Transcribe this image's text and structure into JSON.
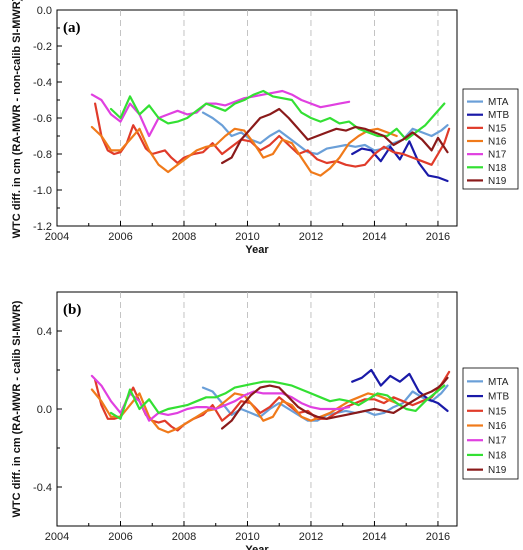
{
  "chart_data": [
    {
      "type": "line",
      "panel_label": "(a)",
      "xlabel": "Year",
      "ylabel": "WTC diff. in cm (RA-MWR - non-calib SI-MWR)",
      "xlim": [
        2004,
        2016.6
      ],
      "ylim": [
        -1.2,
        0.0
      ],
      "xticks": [
        2004,
        2006,
        2008,
        2010,
        2012,
        2014,
        2016
      ],
      "yticks": [
        -1.2,
        -1.0,
        -0.8,
        -0.6,
        -0.4,
        -0.2,
        0.0
      ],
      "ytick_labels": [
        "-1.2",
        "-1.0",
        "-0.8",
        "-0.6",
        "-0.4",
        "-0.2",
        "0.0"
      ],
      "grid": "vertical dashed",
      "legend_position": "right",
      "series": [
        {
          "name": "MTA",
          "color": "#6a9fd8",
          "x": [
            2008.6,
            2008.9,
            2009.2,
            2009.5,
            2009.8,
            2010.1,
            2010.4,
            2010.7,
            2011.0,
            2011.3,
            2011.6,
            2011.9,
            2012.2,
            2012.5,
            2012.8,
            2013.1,
            2013.4,
            2013.7,
            2014.0,
            2014.3,
            2014.6,
            2014.9,
            2015.2,
            2015.5,
            2015.8,
            2016.1,
            2016.3
          ],
          "y": [
            -0.57,
            -0.6,
            -0.64,
            -0.7,
            -0.68,
            -0.72,
            -0.74,
            -0.7,
            -0.67,
            -0.71,
            -0.75,
            -0.79,
            -0.8,
            -0.77,
            -0.76,
            -0.75,
            -0.76,
            -0.75,
            -0.78,
            -0.77,
            -0.74,
            -0.72,
            -0.66,
            -0.68,
            -0.7,
            -0.67,
            -0.64
          ]
        },
        {
          "name": "MTB",
          "color": "#1a1aa8",
          "x": [
            2013.3,
            2013.6,
            2013.9,
            2014.2,
            2014.5,
            2014.8,
            2015.1,
            2015.4,
            2015.7,
            2016.0,
            2016.3
          ],
          "y": [
            -0.8,
            -0.77,
            -0.78,
            -0.84,
            -0.76,
            -0.83,
            -0.73,
            -0.85,
            -0.92,
            -0.93,
            -0.95
          ]
        },
        {
          "name": "N15",
          "color": "#e03b2a",
          "x": [
            2005.2,
            2005.4,
            2005.6,
            2005.8,
            2006.0,
            2006.2,
            2006.4,
            2006.6,
            2006.8,
            2007.0,
            2007.2,
            2007.4,
            2007.6,
            2007.8,
            2008.0,
            2008.3,
            2008.6,
            2008.9,
            2009.2,
            2009.5,
            2009.8,
            2010.1,
            2010.4,
            2010.7,
            2011.0,
            2011.3,
            2011.6,
            2011.9,
            2012.2,
            2012.5,
            2012.8,
            2013.1,
            2013.4,
            2013.7,
            2014.0,
            2014.3,
            2014.6,
            2014.9,
            2015.2,
            2015.5,
            2015.8,
            2016.0,
            2016.2,
            2016.35
          ],
          "y": [
            -0.52,
            -0.7,
            -0.78,
            -0.8,
            -0.79,
            -0.74,
            -0.64,
            -0.7,
            -0.77,
            -0.8,
            -0.79,
            -0.78,
            -0.82,
            -0.85,
            -0.82,
            -0.8,
            -0.79,
            -0.74,
            -0.8,
            -0.76,
            -0.72,
            -0.73,
            -0.78,
            -0.75,
            -0.7,
            -0.75,
            -0.8,
            -0.78,
            -0.83,
            -0.85,
            -0.84,
            -0.86,
            -0.87,
            -0.86,
            -0.8,
            -0.76,
            -0.79,
            -0.8,
            -0.82,
            -0.84,
            -0.86,
            -0.8,
            -0.74,
            -0.66
          ]
        },
        {
          "name": "N16",
          "color": "#f07a1a",
          "x": [
            2005.1,
            2005.4,
            2005.7,
            2006.0,
            2006.3,
            2006.6,
            2006.9,
            2007.2,
            2007.5,
            2007.8,
            2008.1,
            2008.4,
            2008.7,
            2009.0,
            2009.3,
            2009.6,
            2009.9,
            2010.2,
            2010.5,
            2010.8,
            2011.1,
            2011.4,
            2011.7,
            2012.0,
            2012.3,
            2012.6,
            2012.9,
            2013.2,
            2013.5,
            2013.8,
            2014.1,
            2014.4,
            2014.7
          ],
          "y": [
            -0.65,
            -0.7,
            -0.78,
            -0.78,
            -0.72,
            -0.66,
            -0.78,
            -0.86,
            -0.9,
            -0.86,
            -0.82,
            -0.78,
            -0.76,
            -0.75,
            -0.7,
            -0.66,
            -0.67,
            -0.74,
            -0.82,
            -0.8,
            -0.72,
            -0.74,
            -0.82,
            -0.9,
            -0.92,
            -0.88,
            -0.82,
            -0.74,
            -0.7,
            -0.67,
            -0.66,
            -0.68,
            -0.7
          ]
        },
        {
          "name": "N17",
          "color": "#e040e0",
          "x": [
            2005.1,
            2005.4,
            2005.7,
            2006.0,
            2006.3,
            2006.6,
            2006.9,
            2007.2,
            2007.5,
            2007.8,
            2008.1,
            2008.4,
            2008.7,
            2009.0,
            2009.3,
            2009.6,
            2009.9,
            2010.2,
            2010.5,
            2010.8,
            2011.1,
            2011.4,
            2011.7,
            2012.0,
            2012.3,
            2012.6,
            2012.9,
            2013.2
          ],
          "y": [
            -0.47,
            -0.5,
            -0.58,
            -0.62,
            -0.52,
            -0.58,
            -0.7,
            -0.6,
            -0.58,
            -0.56,
            -0.58,
            -0.57,
            -0.52,
            -0.52,
            -0.53,
            -0.51,
            -0.49,
            -0.48,
            -0.47,
            -0.46,
            -0.45,
            -0.47,
            -0.5,
            -0.52,
            -0.54,
            -0.53,
            -0.52,
            -0.51
          ]
        },
        {
          "name": "N18",
          "color": "#33e033",
          "x": [
            2005.7,
            2006.0,
            2006.3,
            2006.6,
            2006.9,
            2007.2,
            2007.5,
            2007.8,
            2008.1,
            2008.4,
            2008.7,
            2009.0,
            2009.3,
            2009.6,
            2009.9,
            2010.2,
            2010.5,
            2010.8,
            2011.1,
            2011.4,
            2011.7,
            2012.0,
            2012.3,
            2012.6,
            2012.9,
            2013.2,
            2013.5,
            2013.8,
            2014.1,
            2014.4,
            2014.7,
            2015.0,
            2015.3,
            2015.6,
            2015.9,
            2016.2
          ],
          "y": [
            -0.55,
            -0.6,
            -0.48,
            -0.58,
            -0.53,
            -0.6,
            -0.63,
            -0.62,
            -0.6,
            -0.56,
            -0.52,
            -0.54,
            -0.56,
            -0.52,
            -0.5,
            -0.47,
            -0.45,
            -0.48,
            -0.49,
            -0.5,
            -0.57,
            -0.6,
            -0.62,
            -0.6,
            -0.63,
            -0.62,
            -0.66,
            -0.68,
            -0.7,
            -0.7,
            -0.66,
            -0.72,
            -0.68,
            -0.64,
            -0.58,
            -0.52
          ]
        },
        {
          "name": "N19",
          "color": "#8a1a1a",
          "x": [
            2009.2,
            2009.5,
            2009.8,
            2010.1,
            2010.4,
            2010.7,
            2011.0,
            2011.3,
            2011.6,
            2011.9,
            2012.2,
            2012.5,
            2012.8,
            2013.1,
            2013.4,
            2013.7,
            2014.0,
            2014.3,
            2014.6,
            2014.9,
            2015.2,
            2015.5,
            2015.8,
            2016.0,
            2016.15,
            2016.3
          ],
          "y": [
            -0.85,
            -0.82,
            -0.72,
            -0.66,
            -0.6,
            -0.58,
            -0.55,
            -0.6,
            -0.66,
            -0.72,
            -0.7,
            -0.68,
            -0.66,
            -0.67,
            -0.65,
            -0.66,
            -0.68,
            -0.7,
            -0.75,
            -0.72,
            -0.68,
            -0.72,
            -0.78,
            -0.71,
            -0.75,
            -0.79
          ]
        }
      ]
    },
    {
      "type": "line",
      "panel_label": "(b)",
      "xlabel": "Year",
      "ylabel": "WTC diff. in cm (RA-MWR - calib SI-MWR)",
      "xlim": [
        2004,
        2016.6
      ],
      "ylim": [
        -0.6,
        0.6
      ],
      "xticks": [
        2004,
        2006,
        2008,
        2010,
        2012,
        2014,
        2016
      ],
      "yticks": [
        -0.4,
        0.0,
        0.4
      ],
      "ytick_labels": [
        "-0.4",
        "0.0",
        "0.4"
      ],
      "grid": "vertical dashed",
      "legend_position": "right",
      "series": [
        {
          "name": "MTA",
          "color": "#6a9fd8",
          "x": [
            2008.6,
            2008.9,
            2009.2,
            2009.5,
            2009.8,
            2010.1,
            2010.4,
            2010.7,
            2011.0,
            2011.3,
            2011.6,
            2011.9,
            2012.2,
            2012.5,
            2012.8,
            2013.1,
            2013.4,
            2013.7,
            2014.0,
            2014.3,
            2014.6,
            2014.9,
            2015.2,
            2015.5,
            2015.8,
            2016.1,
            2016.3
          ],
          "y": [
            0.11,
            0.09,
            0.03,
            -0.03,
            0.0,
            -0.02,
            -0.04,
            0.0,
            0.03,
            0.0,
            -0.03,
            -0.06,
            -0.06,
            -0.03,
            -0.02,
            -0.01,
            -0.02,
            -0.01,
            -0.03,
            -0.02,
            0.01,
            0.03,
            0.09,
            0.06,
            0.04,
            0.08,
            0.12
          ]
        },
        {
          "name": "MTB",
          "color": "#1a1aa8",
          "x": [
            2013.3,
            2013.6,
            2013.9,
            2014.2,
            2014.5,
            2014.8,
            2015.1,
            2015.4,
            2015.7,
            2016.0,
            2016.3
          ],
          "y": [
            0.14,
            0.16,
            0.2,
            0.12,
            0.17,
            0.14,
            0.18,
            0.09,
            0.05,
            0.03,
            -0.01
          ]
        },
        {
          "name": "N15",
          "color": "#e03b2a",
          "x": [
            2005.2,
            2005.4,
            2005.6,
            2005.8,
            2006.0,
            2006.2,
            2006.4,
            2006.6,
            2006.8,
            2007.0,
            2007.2,
            2007.4,
            2007.6,
            2007.8,
            2008.0,
            2008.3,
            2008.6,
            2008.9,
            2009.2,
            2009.5,
            2009.8,
            2010.1,
            2010.4,
            2010.7,
            2011.0,
            2011.3,
            2011.6,
            2011.9,
            2012.2,
            2012.5,
            2012.8,
            2013.1,
            2013.4,
            2013.7,
            2014.0,
            2014.3,
            2014.6,
            2014.9,
            2015.2,
            2015.5,
            2015.8,
            2016.0,
            2016.2,
            2016.35
          ],
          "y": [
            0.15,
            0.02,
            -0.05,
            -0.05,
            -0.04,
            0.05,
            0.11,
            0.04,
            -0.03,
            -0.06,
            -0.07,
            -0.06,
            -0.09,
            -0.11,
            -0.08,
            -0.05,
            -0.03,
            0.02,
            -0.06,
            -0.02,
            0.04,
            0.03,
            -0.02,
            0.01,
            0.06,
            0.02,
            -0.02,
            -0.01,
            -0.05,
            -0.05,
            -0.02,
            0.01,
            0.03,
            0.05,
            0.05,
            0.03,
            0.06,
            0.04,
            0.02,
            0.04,
            0.06,
            0.1,
            0.15,
            0.19
          ]
        },
        {
          "name": "N16",
          "color": "#f07a1a",
          "x": [
            2005.1,
            2005.4,
            2005.7,
            2006.0,
            2006.3,
            2006.6,
            2006.9,
            2007.2,
            2007.5,
            2007.8,
            2008.1,
            2008.4,
            2008.7,
            2009.0,
            2009.3,
            2009.6,
            2009.9,
            2010.2,
            2010.5,
            2010.8,
            2011.1,
            2011.4,
            2011.7,
            2012.0,
            2012.3,
            2012.6,
            2012.9,
            2013.2,
            2013.5,
            2013.8,
            2014.1,
            2014.4,
            2014.7
          ],
          "y": [
            0.1,
            0.04,
            -0.04,
            -0.04,
            0.02,
            0.08,
            -0.04,
            -0.1,
            -0.12,
            -0.1,
            -0.07,
            -0.04,
            -0.01,
            0.0,
            0.04,
            0.08,
            0.07,
            0.01,
            -0.06,
            -0.04,
            0.04,
            0.02,
            -0.04,
            -0.06,
            -0.04,
            -0.02,
            0.01,
            0.04,
            0.06,
            0.08,
            0.07,
            0.05,
            0.03
          ]
        },
        {
          "name": "N17",
          "color": "#e040e0",
          "x": [
            2005.1,
            2005.4,
            2005.7,
            2006.0,
            2006.3,
            2006.6,
            2006.9,
            2007.2,
            2007.5,
            2007.8,
            2008.1,
            2008.4,
            2008.7,
            2009.0,
            2009.3,
            2009.6,
            2009.9,
            2010.2,
            2010.5,
            2010.8,
            2011.1,
            2011.4,
            2011.7,
            2012.0,
            2012.3,
            2012.6,
            2012.9,
            2013.2
          ],
          "y": [
            0.17,
            0.12,
            0.04,
            -0.02,
            0.08,
            0.04,
            -0.06,
            -0.02,
            -0.03,
            -0.02,
            0.0,
            0.01,
            0.01,
            0.0,
            0.02,
            0.04,
            0.07,
            0.09,
            0.08,
            0.08,
            0.08,
            0.06,
            0.03,
            0.01,
            0.0,
            0.0,
            0.0,
            0.01
          ]
        },
        {
          "name": "N18",
          "color": "#33e033",
          "x": [
            2005.7,
            2006.0,
            2006.3,
            2006.6,
            2006.9,
            2007.2,
            2007.5,
            2007.8,
            2008.1,
            2008.4,
            2008.7,
            2009.0,
            2009.3,
            2009.6,
            2009.9,
            2010.2,
            2010.5,
            2010.8,
            2011.1,
            2011.4,
            2011.7,
            2012.0,
            2012.3,
            2012.6,
            2012.9,
            2013.2,
            2013.5,
            2013.8,
            2014.1,
            2014.4,
            2014.7,
            2015.0,
            2015.3,
            2015.6,
            2015.9,
            2016.2
          ],
          "y": [
            -0.02,
            -0.05,
            0.1,
            0.0,
            0.05,
            -0.02,
            0.0,
            0.01,
            0.02,
            0.04,
            0.06,
            0.06,
            0.08,
            0.11,
            0.12,
            0.13,
            0.14,
            0.14,
            0.13,
            0.12,
            0.1,
            0.08,
            0.06,
            0.04,
            0.05,
            0.04,
            0.02,
            0.05,
            0.08,
            0.07,
            0.03,
            0.0,
            -0.01,
            0.04,
            0.08,
            0.12
          ]
        },
        {
          "name": "N19",
          "color": "#8a1a1a",
          "x": [
            2009.2,
            2009.5,
            2009.8,
            2010.1,
            2010.4,
            2010.7,
            2011.0,
            2011.3,
            2011.6,
            2011.9,
            2012.2,
            2012.5,
            2012.8,
            2013.1,
            2013.4,
            2013.7,
            2014.0,
            2014.3,
            2014.6,
            2014.9,
            2015.2,
            2015.5,
            2015.8,
            2016.0,
            2016.15,
            2016.3
          ],
          "y": [
            -0.1,
            -0.06,
            0.01,
            0.07,
            0.11,
            0.12,
            0.11,
            0.06,
            0.01,
            -0.02,
            -0.04,
            -0.05,
            -0.04,
            -0.03,
            -0.02,
            -0.01,
            0.0,
            -0.01,
            -0.02,
            0.01,
            0.04,
            0.07,
            0.09,
            0.11,
            0.13,
            0.16
          ]
        }
      ]
    }
  ]
}
